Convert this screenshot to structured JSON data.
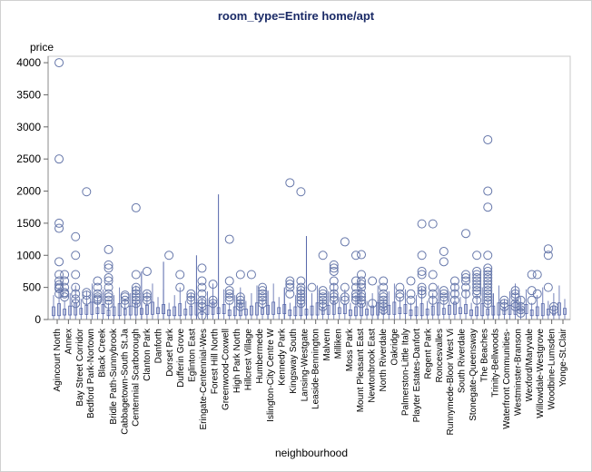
{
  "chart_data": {
    "type": "boxplot",
    "title": "room_type=Entire home/apt",
    "ylabel": "price",
    "xlabel": "neighbourhood",
    "ylim": [
      0,
      4100
    ],
    "yticks": [
      0,
      500,
      1000,
      1500,
      2000,
      2500,
      3000,
      3500,
      4000
    ],
    "grid": false,
    "colors": {
      "marker": "#6677aa",
      "box": "#5566aa",
      "title": "#1a2a66",
      "frame": "#c8c8c8"
    },
    "categories": [
      "Agincourt North",
      "Annex",
      "Bay Street Corridor",
      "Bedford Park-Nortown",
      "Black Creek",
      "Bridle Path-Sunnybrook",
      "Cabbagetown-South St.Ja",
      "Centennial Scarborough",
      "Clanton Park",
      "Danforth",
      "Dorset Park",
      "Dufferin Grove",
      "Eglinton East",
      "Eringate-Centennial-Wes",
      "Forest Hill North",
      "Greenwood-Coxwell",
      "High Park North",
      "Hillcrest Village",
      "Humbermede",
      "Islington-City Centre W",
      "Kennedy Park",
      "Kingsway South",
      "Lansing-Westgate",
      "Leaside-Bennington",
      "Malvern",
      "Milliken",
      "Moss Park",
      "Mount Pleasant East",
      "Newtonbrook East",
      "North Riverdale",
      "Oakridge",
      "Palmerston-Little Italy",
      "Playter Estates-Danfort",
      "Regent Park",
      "Roncesvalles",
      "Runnymede-Bloor West Vi",
      "South Riverdale",
      "Stonegate-Queensway",
      "The Beaches",
      "Trinity-Bellwoods",
      "Waterfront Communities-",
      "Westminster-Branson",
      "Wexford/Maryvale",
      "Willowdale-Westgrove",
      "Woodbine-Lumsden",
      "Yonge-St.Clair"
    ],
    "outliers": [
      {
        "x": 2,
        "y": [
          400,
          480,
          500,
          540,
          600,
          700,
          900,
          1420,
          1500,
          2500,
          4000
        ]
      },
      {
        "x": 3,
        "y": [
          350,
          400,
          420,
          500,
          600,
          700
        ]
      },
      {
        "x": 5,
        "y": [
          250,
          320,
          400,
          500,
          700,
          1000,
          1290
        ]
      },
      {
        "x": 7,
        "y": [
          300,
          380,
          420,
          1990
        ]
      },
      {
        "x": 9,
        "y": [
          300,
          320,
          350,
          400,
          500,
          600
        ]
      },
      {
        "x": 11,
        "y": [
          240,
          300,
          350,
          400,
          500,
          600,
          650,
          800,
          850,
          1090
        ]
      },
      {
        "x": 14,
        "y": [
          240,
          300,
          350,
          380
        ]
      },
      {
        "x": 16,
        "y": [
          250,
          300,
          350,
          400,
          450,
          500,
          700,
          1740
        ]
      },
      {
        "x": 18,
        "y": [
          300,
          350,
          400,
          750
        ]
      },
      {
        "x": 22,
        "y": [
          1000
        ]
      },
      {
        "x": 24,
        "y": [
          500,
          700
        ]
      },
      {
        "x": 26,
        "y": [
          300,
          350,
          400
        ]
      },
      {
        "x": 28,
        "y": [
          60,
          200,
          250,
          300,
          400,
          500,
          600,
          800
        ]
      },
      {
        "x": 30,
        "y": [
          250,
          300,
          550
        ]
      },
      {
        "x": 33,
        "y": [
          300,
          350,
          400,
          450,
          600,
          1250
        ]
      },
      {
        "x": 35,
        "y": [
          200,
          250,
          300,
          350,
          700
        ]
      },
      {
        "x": 37,
        "y": [
          700
        ]
      },
      {
        "x": 39,
        "y": [
          250,
          300,
          350,
          400,
          450,
          500
        ]
      },
      {
        "x": 44,
        "y": [
          400,
          500,
          550,
          600,
          2130
        ]
      },
      {
        "x": 46,
        "y": [
          250,
          300,
          350,
          400,
          450,
          500,
          600,
          1990
        ]
      },
      {
        "x": 48,
        "y": [
          500
        ]
      },
      {
        "x": 50,
        "y": [
          200,
          250,
          300,
          350,
          400,
          450,
          1000
        ]
      },
      {
        "x": 52,
        "y": [
          300,
          350,
          400,
          500,
          600,
          750,
          800,
          850
        ]
      },
      {
        "x": 54,
        "y": [
          300,
          350,
          500,
          1210
        ]
      },
      {
        "x": 56,
        "y": [
          300,
          350,
          400,
          500,
          600,
          1000
        ]
      },
      {
        "x": 57,
        "y": [
          250,
          300,
          350,
          400,
          500,
          550,
          600,
          700,
          1010
        ]
      },
      {
        "x": 59,
        "y": [
          250,
          600
        ]
      },
      {
        "x": 61,
        "y": [
          150,
          200,
          250,
          300,
          350,
          400,
          500,
          600
        ]
      },
      {
        "x": 64,
        "y": [
          350,
          400,
          500
        ]
      },
      {
        "x": 66,
        "y": [
          300,
          400,
          600
        ]
      },
      {
        "x": 68,
        "y": [
          400,
          450,
          500,
          700,
          750,
          1000,
          1490
        ]
      },
      {
        "x": 70,
        "y": [
          300,
          400,
          500,
          700,
          1490
        ]
      },
      {
        "x": 72,
        "y": [
          300,
          350,
          400,
          450,
          1060,
          900
        ]
      },
      {
        "x": 74,
        "y": [
          300,
          400,
          500,
          600
        ]
      },
      {
        "x": 76,
        "y": [
          400,
          500,
          600,
          650,
          700,
          1340
        ]
      },
      {
        "x": 78,
        "y": [
          300,
          400,
          450,
          500,
          550,
          600,
          650,
          700,
          750,
          1000
        ]
      },
      {
        "x": 80,
        "y": [
          250,
          300,
          350,
          400,
          450,
          500,
          550,
          600,
          650,
          700,
          750,
          800,
          1000,
          1750,
          2000,
          2800
        ]
      },
      {
        "x": 83,
        "y": [
          200,
          250,
          300
        ]
      },
      {
        "x": 85,
        "y": [
          200,
          250,
          350,
          400,
          450
        ]
      },
      {
        "x": 86,
        "y": [
          100,
          150,
          200,
          300
        ]
      },
      {
        "x": 88,
        "y": [
          300,
          450,
          700
        ]
      },
      {
        "x": 89,
        "y": [
          400,
          700
        ]
      },
      {
        "x": 91,
        "y": [
          500,
          1000,
          1100
        ]
      },
      {
        "x": 92,
        "y": [
          150,
          200
        ]
      }
    ],
    "tall_whiskers": [
      {
        "x": 17,
        "y": 750
      },
      {
        "x": 21,
        "y": 900
      },
      {
        "x": 27,
        "y": 1000
      },
      {
        "x": 31,
        "y": 1950
      },
      {
        "x": 40,
        "y": 450
      },
      {
        "x": 43,
        "y": 500
      },
      {
        "x": 47,
        "y": 1300
      },
      {
        "x": 60,
        "y": 300
      },
      {
        "x": 81,
        "y": 400
      }
    ]
  }
}
